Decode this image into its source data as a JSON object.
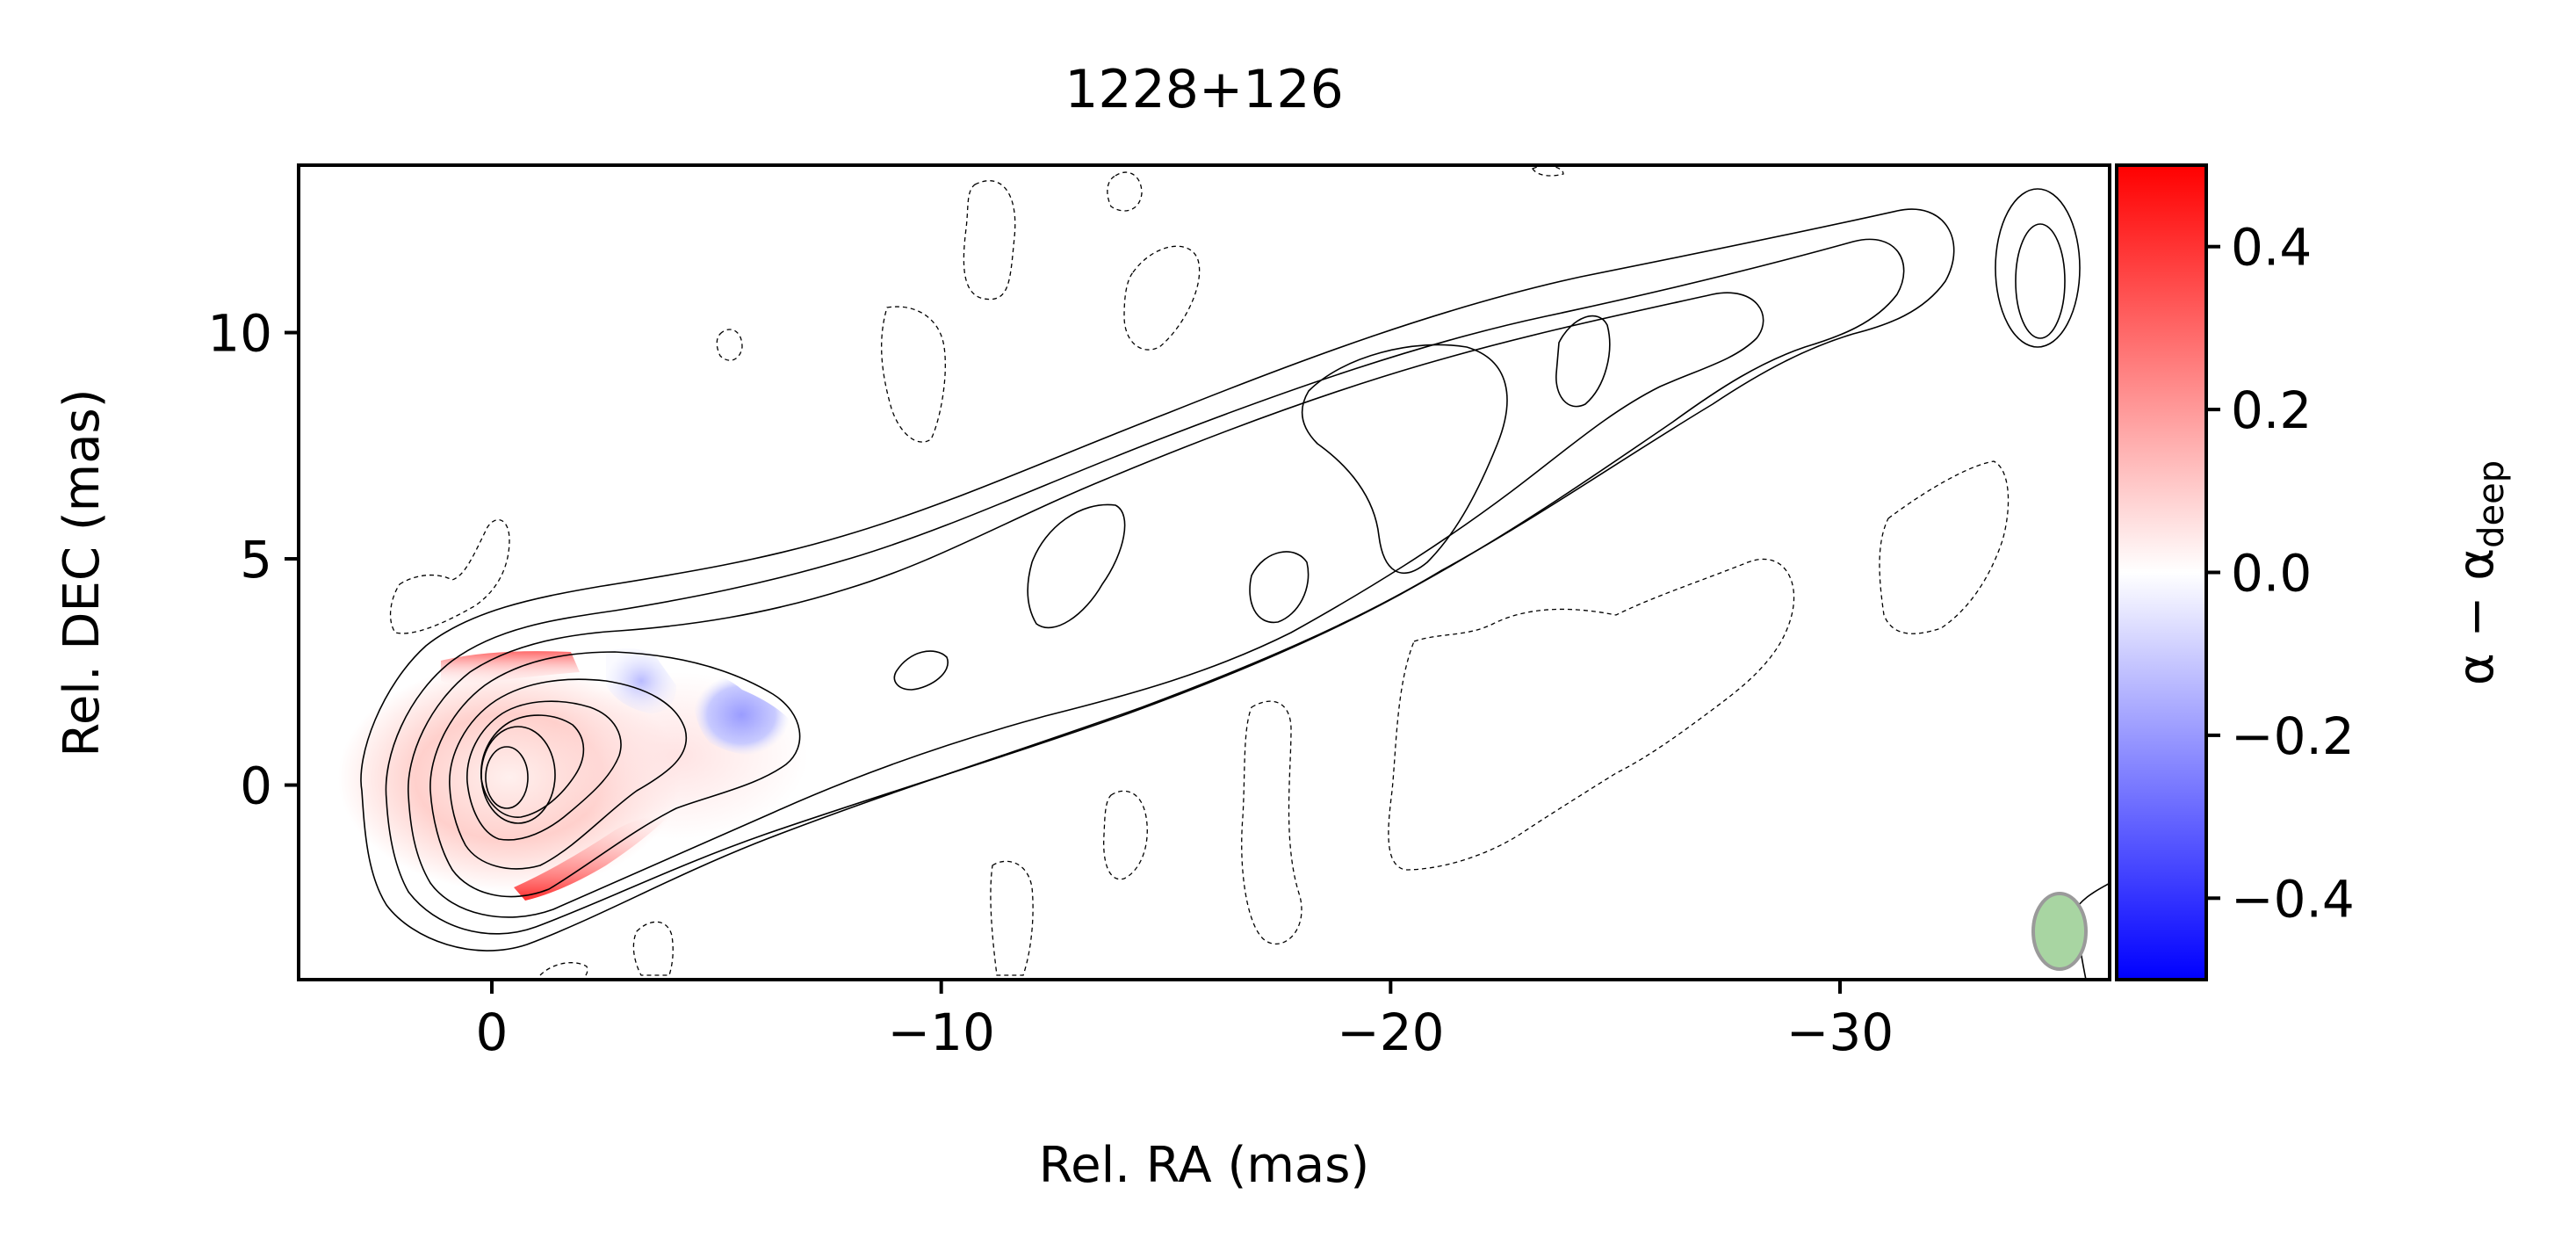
{
  "chart_data": {
    "type": "heatmap",
    "title": "1228+126",
    "xlabel": "Rel. RA (mas)",
    "ylabel": "Rel. DEC (mas)",
    "xlim": [
      4.3,
      -36.0
    ],
    "ylim": [
      -4.3,
      13.7
    ],
    "x_ticks": [
      0,
      -10,
      -20,
      -30
    ],
    "x_tick_labels": [
      "0",
      "−10",
      "−20",
      "−30"
    ],
    "y_ticks": [
      0,
      5,
      10
    ],
    "y_tick_labels": [
      "0",
      "5",
      "10"
    ],
    "colorbar": {
      "label_main": "α − α",
      "label_sub": "deep",
      "range": [
        -0.5,
        0.5
      ],
      "colormap": "bwr",
      "colors": [
        "#0000ff",
        "#ffffff",
        "#ff0000"
      ],
      "ticks": [
        0.4,
        0.2,
        0.0,
        -0.2,
        -0.4
      ],
      "tick_labels": [
        "0.4",
        "0.2",
        "0.0",
        "−0.2",
        "−0.4"
      ]
    },
    "core_position": [
      0,
      0
    ],
    "jet_position_angle_deg": -70,
    "positive_contour_levels": 9,
    "negative_contour_style": "dashed",
    "spectral_index_difference_regions": [
      {
        "x": 0.5,
        "y": 0.5,
        "value": 0.1
      },
      {
        "x": -1.5,
        "y": 2.7,
        "value": 0.4
      },
      {
        "x": -2.0,
        "y": -1.8,
        "value": 0.5
      },
      {
        "x": -3.0,
        "y": 2.5,
        "value": -0.2
      },
      {
        "x": -5.5,
        "y": 1.2,
        "value": -0.3
      }
    ],
    "beam": {
      "x": -34.6,
      "y": -3.2,
      "major_mas": 2.4,
      "minor_mas": 1.3,
      "pa_deg": 0,
      "color": "#a8d5a2"
    },
    "grid": false
  }
}
